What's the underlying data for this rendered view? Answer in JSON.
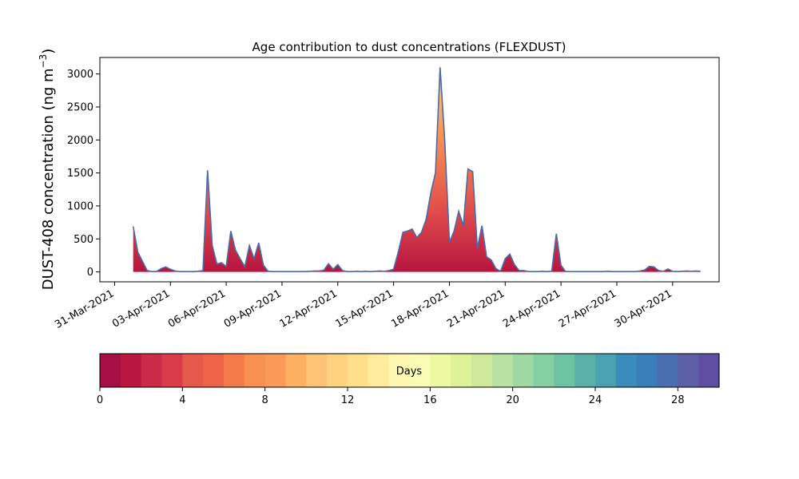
{
  "chart_data": {
    "type": "area",
    "title": "Age contribution to dust concentrations (FLEXDUST)",
    "ylabel_main": "DUST-408 concentration (ng m",
    "ylabel_sup": "−3",
    "ylabel_close": ")",
    "xlabel": "",
    "ylim": [
      -150,
      3250
    ],
    "yticks": [
      0,
      500,
      1000,
      1500,
      2000,
      2500,
      3000
    ],
    "xlim": [
      "2021-03-30T05:00",
      "2021-05-02T12:00"
    ],
    "xticks": [
      {
        "date": "2021-03-31",
        "label": "31-Mar-2021"
      },
      {
        "date": "2021-04-03",
        "label": "03-Apr-2021"
      },
      {
        "date": "2021-04-06",
        "label": "06-Apr-2021"
      },
      {
        "date": "2021-04-09",
        "label": "09-Apr-2021"
      },
      {
        "date": "2021-04-12",
        "label": "12-Apr-2021"
      },
      {
        "date": "2021-04-15",
        "label": "15-Apr-2021"
      },
      {
        "date": "2021-04-18",
        "label": "18-Apr-2021"
      },
      {
        "date": "2021-04-21",
        "label": "21-Apr-2021"
      },
      {
        "date": "2021-04-24",
        "label": "24-Apr-2021"
      },
      {
        "date": "2021-04-27",
        "label": "27-Apr-2021"
      },
      {
        "date": "2021-04-30",
        "label": "30-Apr-2021"
      }
    ],
    "series": [
      {
        "total_line_color": "#4a6aa8",
        "points": [
          [
            "2021-04-01T00:00",
            690
          ],
          [
            "2021-04-01T06:00",
            300
          ],
          [
            "2021-04-01T12:00",
            160
          ],
          [
            "2021-04-01T18:00",
            20
          ],
          [
            "2021-04-02T00:00",
            5
          ],
          [
            "2021-04-02T06:00",
            5
          ],
          [
            "2021-04-02T12:00",
            50
          ],
          [
            "2021-04-02T18:00",
            75
          ],
          [
            "2021-04-03T00:00",
            40
          ],
          [
            "2021-04-03T06:00",
            15
          ],
          [
            "2021-04-03T12:00",
            5
          ],
          [
            "2021-04-03T18:00",
            5
          ],
          [
            "2021-04-04T00:00",
            5
          ],
          [
            "2021-04-04T06:00",
            5
          ],
          [
            "2021-04-04T12:00",
            10
          ],
          [
            "2021-04-04T18:00",
            20
          ],
          [
            "2021-04-05T00:00",
            1540
          ],
          [
            "2021-04-05T06:00",
            400
          ],
          [
            "2021-04-05T12:00",
            120
          ],
          [
            "2021-04-05T18:00",
            140
          ],
          [
            "2021-04-06T00:00",
            80
          ],
          [
            "2021-04-06T06:00",
            620
          ],
          [
            "2021-04-06T12:00",
            330
          ],
          [
            "2021-04-06T18:00",
            200
          ],
          [
            "2021-04-07T00:00",
            80
          ],
          [
            "2021-04-07T06:00",
            400
          ],
          [
            "2021-04-07T12:00",
            200
          ],
          [
            "2021-04-07T18:00",
            440
          ],
          [
            "2021-04-08T00:00",
            100
          ],
          [
            "2021-04-08T06:00",
            10
          ],
          [
            "2021-04-08T12:00",
            5
          ],
          [
            "2021-04-08T18:00",
            5
          ],
          [
            "2021-04-09T00:00",
            5
          ],
          [
            "2021-04-09T06:00",
            5
          ],
          [
            "2021-04-09T12:00",
            5
          ],
          [
            "2021-04-09T18:00",
            5
          ],
          [
            "2021-04-10T00:00",
            5
          ],
          [
            "2021-04-10T06:00",
            5
          ],
          [
            "2021-04-10T12:00",
            10
          ],
          [
            "2021-04-10T18:00",
            15
          ],
          [
            "2021-04-11T00:00",
            15
          ],
          [
            "2021-04-11T06:00",
            25
          ],
          [
            "2021-04-11T12:00",
            125
          ],
          [
            "2021-04-11T18:00",
            40
          ],
          [
            "2021-04-12T00:00",
            110
          ],
          [
            "2021-04-12T06:00",
            20
          ],
          [
            "2021-04-12T12:00",
            5
          ],
          [
            "2021-04-12T18:00",
            5
          ],
          [
            "2021-04-13T00:00",
            10
          ],
          [
            "2021-04-13T06:00",
            5
          ],
          [
            "2021-04-13T12:00",
            10
          ],
          [
            "2021-04-13T18:00",
            5
          ],
          [
            "2021-04-14T00:00",
            10
          ],
          [
            "2021-04-14T06:00",
            15
          ],
          [
            "2021-04-14T12:00",
            10
          ],
          [
            "2021-04-14T18:00",
            20
          ],
          [
            "2021-04-15T00:00",
            40
          ],
          [
            "2021-04-15T06:00",
            300
          ],
          [
            "2021-04-15T12:00",
            600
          ],
          [
            "2021-04-15T18:00",
            620
          ],
          [
            "2021-04-16T00:00",
            650
          ],
          [
            "2021-04-16T06:00",
            520
          ],
          [
            "2021-04-16T12:00",
            600
          ],
          [
            "2021-04-16T18:00",
            800
          ],
          [
            "2021-04-17T00:00",
            1200
          ],
          [
            "2021-04-17T06:00",
            1500
          ],
          [
            "2021-04-17T12:00",
            3100
          ],
          [
            "2021-04-17T18:00",
            2000
          ],
          [
            "2021-04-18T00:00",
            450
          ],
          [
            "2021-04-18T06:00",
            620
          ],
          [
            "2021-04-18T12:00",
            920
          ],
          [
            "2021-04-18T18:00",
            700
          ],
          [
            "2021-04-19T00:00",
            1560
          ],
          [
            "2021-04-19T06:00",
            1520
          ],
          [
            "2021-04-19T12:00",
            360
          ],
          [
            "2021-04-19T18:00",
            700
          ],
          [
            "2021-04-20T00:00",
            230
          ],
          [
            "2021-04-20T06:00",
            180
          ],
          [
            "2021-04-20T12:00",
            50
          ],
          [
            "2021-04-20T18:00",
            10
          ],
          [
            "2021-04-21T00:00",
            200
          ],
          [
            "2021-04-21T06:00",
            270
          ],
          [
            "2021-04-21T12:00",
            110
          ],
          [
            "2021-04-21T18:00",
            20
          ],
          [
            "2021-04-22T00:00",
            20
          ],
          [
            "2021-04-22T06:00",
            5
          ],
          [
            "2021-04-22T12:00",
            5
          ],
          [
            "2021-04-22T18:00",
            5
          ],
          [
            "2021-04-23T00:00",
            10
          ],
          [
            "2021-04-23T06:00",
            5
          ],
          [
            "2021-04-23T12:00",
            10
          ],
          [
            "2021-04-23T18:00",
            580
          ],
          [
            "2021-04-24T00:00",
            100
          ],
          [
            "2021-04-24T06:00",
            5
          ],
          [
            "2021-04-24T12:00",
            5
          ],
          [
            "2021-04-24T18:00",
            5
          ],
          [
            "2021-04-25T00:00",
            5
          ],
          [
            "2021-04-25T06:00",
            5
          ],
          [
            "2021-04-25T12:00",
            5
          ],
          [
            "2021-04-25T18:00",
            5
          ],
          [
            "2021-04-26T00:00",
            5
          ],
          [
            "2021-04-26T06:00",
            5
          ],
          [
            "2021-04-26T12:00",
            10
          ],
          [
            "2021-04-26T18:00",
            5
          ],
          [
            "2021-04-27T00:00",
            5
          ],
          [
            "2021-04-27T06:00",
            5
          ],
          [
            "2021-04-27T12:00",
            5
          ],
          [
            "2021-04-27T18:00",
            5
          ],
          [
            "2021-04-28T00:00",
            5
          ],
          [
            "2021-04-28T06:00",
            15
          ],
          [
            "2021-04-28T12:00",
            30
          ],
          [
            "2021-04-28T18:00",
            85
          ],
          [
            "2021-04-29T00:00",
            75
          ],
          [
            "2021-04-29T06:00",
            20
          ],
          [
            "2021-04-29T12:00",
            10
          ],
          [
            "2021-04-29T18:00",
            45
          ],
          [
            "2021-04-30T00:00",
            10
          ],
          [
            "2021-04-30T06:00",
            5
          ],
          [
            "2021-04-30T12:00",
            10
          ],
          [
            "2021-04-30T18:00",
            15
          ],
          [
            "2021-05-01T00:00",
            10
          ],
          [
            "2021-05-01T06:00",
            15
          ],
          [
            "2021-05-01T12:00",
            10
          ]
        ]
      }
    ],
    "colorbar": {
      "label": "Days",
      "range": [
        0,
        30
      ],
      "ticks": [
        0,
        4,
        8,
        12,
        16,
        20,
        24,
        28
      ],
      "bin_colors": [
        "#a50f43",
        "#b9173f",
        "#cc2b47",
        "#da3c4b",
        "#e65a4b",
        "#ed6548",
        "#f57a4a",
        "#f88f53",
        "#fa9a58",
        "#fdaf62",
        "#fec475",
        "#fed280",
        "#fee08b",
        "#feec9c",
        "#fff7b0",
        "#f8fcb4",
        "#eef8a2",
        "#e0f297",
        "#cde99a",
        "#b9e2a0",
        "#a0d8a3",
        "#85cfa5",
        "#6fc3a5",
        "#5bb1a8",
        "#4aa2b1",
        "#3a8cbd",
        "#3a7fb9",
        "#4a6fb1",
        "#5e5ea6",
        "#5e4fa2"
      ]
    }
  }
}
